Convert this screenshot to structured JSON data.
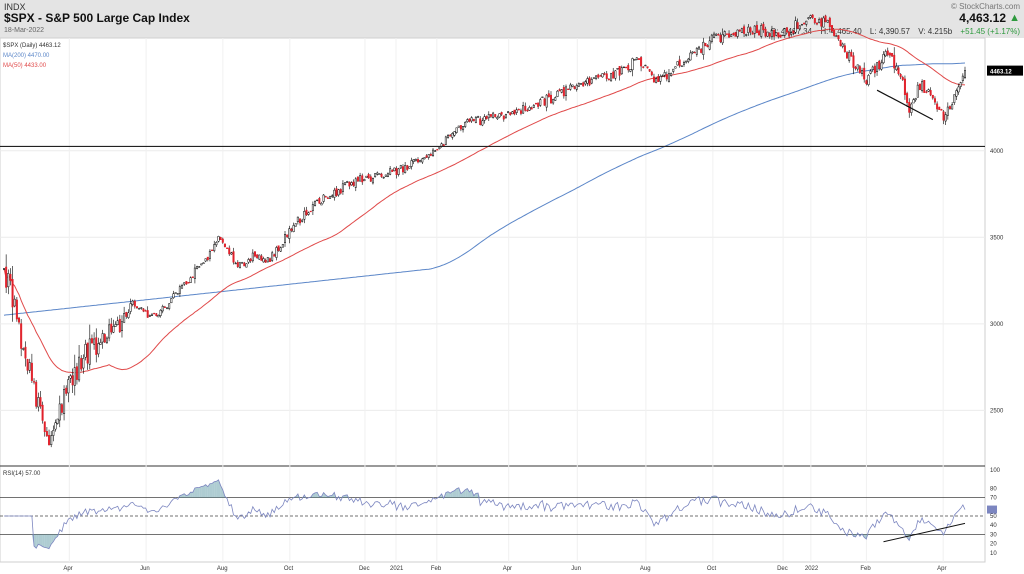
{
  "header": {
    "exchange": "INDX",
    "title": "$SPX - S&P 500 Large Cap Index",
    "date": "18-Mar-2022",
    "copyright": "© StockCharts.com",
    "last_price": "4,463.12",
    "quote": {
      "open": "O: 4,407.34",
      "high": "H: 4,465.40",
      "low": "L: 4,390.57",
      "volume": "V: 4.215b",
      "change": "+51.45 (+1.17%)"
    }
  },
  "legend": {
    "symbol": "$SPX (Daily) 4463.12",
    "ma200": "MA(200) 4470.00",
    "ma50": "MA(50) 4433.00",
    "rsi": "RSI(14) 57.00"
  },
  "colors": {
    "up": "#ffffff",
    "down": "#e0202a",
    "candle_outline": "#000000",
    "ma200": "#5b86c8",
    "ma50": "#e04a4a",
    "rsi_line": "#7c86c0",
    "rsi_fill": "#78aab4",
    "last_price_tag": "#000000",
    "change_green": "#2e9a3e"
  },
  "chart_data": [
    {
      "type": "candlestick",
      "title": "$SPX - S&P 500 Large Cap Index",
      "ylim": [
        2190,
        4640
      ],
      "y_ticks": [
        "2500",
        "3000",
        "3500",
        "4000",
        "4463.12"
      ],
      "x_ticks": [
        "Apr",
        "Jun",
        "Aug",
        "Oct",
        "Dec",
        "2021",
        "Feb",
        "Apr",
        "Jun",
        "Aug",
        "Oct",
        "Dec",
        "2022",
        "Feb",
        "Apr"
      ],
      "close_keypoints": [
        [
          0,
          3340
        ],
        [
          6,
          3020
        ],
        [
          14,
          2640
        ],
        [
          20,
          2300
        ],
        [
          25,
          2480
        ],
        [
          30,
          2650
        ],
        [
          38,
          2820
        ],
        [
          45,
          2900
        ],
        [
          50,
          2950
        ],
        [
          55,
          3000
        ],
        [
          60,
          3120
        ],
        [
          64,
          3090
        ],
        [
          68,
          3030
        ],
        [
          75,
          3100
        ],
        [
          85,
          3240
        ],
        [
          95,
          3390
        ],
        [
          100,
          3500
        ],
        [
          104,
          3420
        ],
        [
          110,
          3330
        ],
        [
          117,
          3400
        ],
        [
          124,
          3370
        ],
        [
          130,
          3480
        ],
        [
          140,
          3640
        ],
        [
          150,
          3730
        ],
        [
          165,
          3830
        ],
        [
          180,
          3870
        ],
        [
          190,
          3920
        ],
        [
          205,
          4050
        ],
        [
          215,
          4160
        ],
        [
          230,
          4200
        ],
        [
          245,
          4250
        ],
        [
          260,
          4330
        ],
        [
          270,
          4380
        ],
        [
          285,
          4440
        ],
        [
          295,
          4520
        ],
        [
          305,
          4400
        ],
        [
          315,
          4500
        ],
        [
          330,
          4640
        ],
        [
          345,
          4700
        ],
        [
          355,
          4690
        ],
        [
          365,
          4680
        ],
        [
          375,
          4780
        ],
        [
          385,
          4730
        ],
        [
          395,
          4520
        ],
        [
          402,
          4410
        ],
        [
          408,
          4500
        ],
        [
          412,
          4560
        ],
        [
          418,
          4450
        ],
        [
          422,
          4250
        ],
        [
          427,
          4380
        ],
        [
          432,
          4330
        ],
        [
          438,
          4200
        ],
        [
          443,
          4310
        ],
        [
          448,
          4463.12
        ]
      ],
      "series": [
        {
          "name": "MA(50)",
          "value": 4433
        },
        {
          "name": "MA(200)",
          "value": 4470
        }
      ],
      "horizontal_line": 4025,
      "trendline_price": [
        [
          407,
          4350
        ],
        [
          433,
          4180
        ]
      ]
    },
    {
      "type": "line",
      "title": "RSI(14) 57.00",
      "ylim": [
        0,
        100
      ],
      "y_ticks": [
        "100",
        "80",
        "70",
        "57",
        "50",
        "40",
        "30",
        "20",
        "10"
      ],
      "reference_lines": [
        70,
        50,
        30
      ],
      "last_value": 57,
      "trendline_rsi": [
        [
          410,
          22
        ],
        [
          448,
          42
        ]
      ]
    }
  ]
}
